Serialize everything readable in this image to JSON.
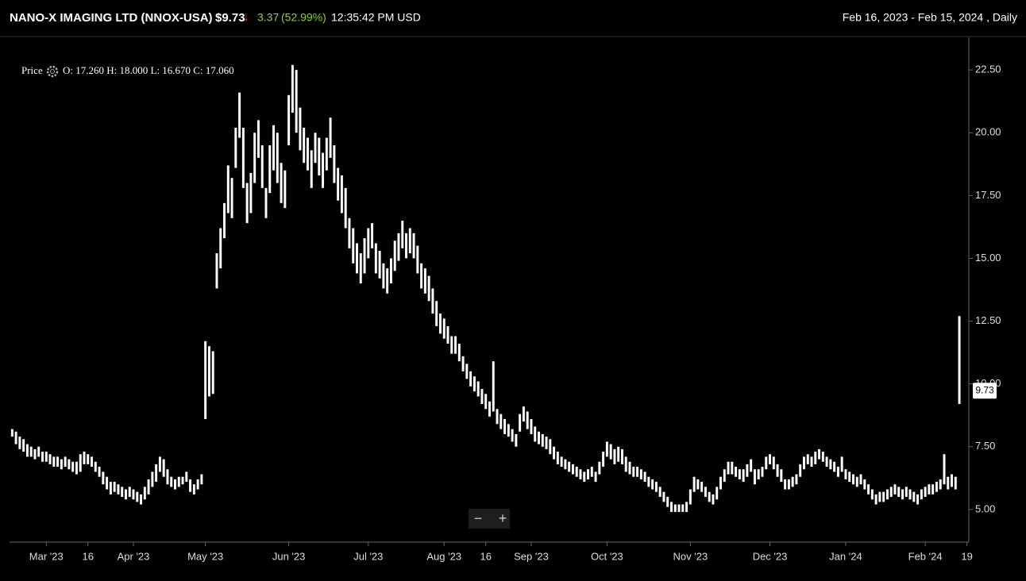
{
  "header": {
    "title": "NANO-X IMAGING LTD (NNOX-USA)",
    "price": "$9.73",
    "change": "3.37",
    "change_pct": "(52.99%)",
    "time": "12:35:42 PM USD",
    "range": "Feb 16, 2023 - Feb 15, 2024 , Daily"
  },
  "legend": {
    "label": "Price",
    "ohlc": "O: 17.260 H: 18.000 L: 16.670 C: 17.060"
  },
  "controls": {
    "zoom_out": "−",
    "zoom_in": "+"
  },
  "chart_data": {
    "type": "ohlc",
    "color": "#ffffff",
    "xlim": [
      -0.7,
      252.5
    ],
    "xticks": [
      {
        "value": 9,
        "label": "Mar '23"
      },
      {
        "value": 20,
        "label": "16"
      },
      {
        "value": 32,
        "label": "Apr '23"
      },
      {
        "value": 51,
        "label": "May '23"
      },
      {
        "value": 73,
        "label": "Jun '23"
      },
      {
        "value": 94,
        "label": "Jul '23"
      },
      {
        "value": 114,
        "label": "Aug '23"
      },
      {
        "value": 125,
        "label": "16"
      },
      {
        "value": 137,
        "label": "Sep '23"
      },
      {
        "value": 157,
        "label": "Oct '23"
      },
      {
        "value": 179,
        "label": "Nov '23"
      },
      {
        "value": 200,
        "label": "Dec '23"
      },
      {
        "value": 220,
        "label": "Jan '24"
      },
      {
        "value": 241,
        "label": "Feb '24"
      },
      {
        "value": 252,
        "label": "19"
      }
    ],
    "ylim": [
      3.7,
      23.8
    ],
    "yticks": [
      {
        "value": 5,
        "label": "5.00"
      },
      {
        "value": 7.5,
        "label": "7.50"
      },
      {
        "value": 10,
        "label": "10.00"
      },
      {
        "value": 12.5,
        "label": "12.50"
      },
      {
        "value": 15,
        "label": "15.00"
      },
      {
        "value": 17.5,
        "label": "17.50"
      },
      {
        "value": 20,
        "label": "20.00"
      },
      {
        "value": 22.5,
        "label": "22.50"
      }
    ],
    "last_price": {
      "value": 9.73,
      "label": "9.73"
    },
    "high": [
      8.2,
      8.1,
      7.9,
      7.8,
      7.6,
      7.5,
      7.4,
      7.5,
      7.3,
      7.3,
      7.2,
      7.1,
      7.1,
      7.0,
      7.1,
      7.0,
      6.9,
      6.9,
      7.2,
      7.3,
      7.2,
      7.1,
      6.9,
      6.7,
      6.5,
      6.3,
      6.1,
      6.1,
      6.0,
      5.9,
      5.8,
      5.9,
      5.8,
      5.7,
      5.6,
      5.9,
      6.2,
      6.5,
      6.8,
      7.1,
      7.0,
      6.6,
      6.3,
      6.2,
      6.3,
      6.3,
      6.5,
      6.2,
      6.0,
      6.2,
      6.4,
      11.7,
      11.5,
      11.3,
      15.2,
      16.2,
      17.2,
      18.7,
      18.2,
      20.2,
      21.6,
      20.2,
      18.0,
      18.4,
      20.0,
      20.5,
      19.5,
      17.8,
      19.5,
      20.3,
      20.0,
      18.8,
      18.5,
      21.5,
      22.7,
      22.5,
      21.0,
      20.2,
      19.8,
      19.3,
      20.0,
      19.8,
      19.2,
      19.8,
      20.6,
      19.5,
      18.6,
      18.3,
      17.8,
      16.6,
      16.2,
      15.6,
      15.2,
      15.8,
      16.2,
      16.4,
      15.6,
      15.3,
      14.8,
      14.6,
      15.0,
      15.7,
      16.0,
      16.5,
      16.0,
      16.2,
      16.0,
      15.5,
      14.8,
      14.6,
      14.3,
      13.8,
      13.3,
      12.8,
      12.6,
      12.3,
      11.9,
      11.9,
      11.6,
      11.1,
      10.8,
      10.5,
      10.3,
      10.1,
      9.8,
      9.6,
      9.3,
      10.9,
      9.0,
      8.8,
      8.6,
      8.4,
      8.2,
      8.0,
      8.8,
      9.1,
      8.9,
      8.6,
      8.3,
      8.1,
      8.0,
      7.9,
      7.8,
      7.5,
      7.3,
      7.1,
      7.0,
      6.9,
      6.8,
      6.7,
      6.6,
      6.5,
      6.6,
      6.7,
      6.5,
      6.9,
      7.3,
      7.7,
      7.6,
      7.4,
      7.5,
      7.4,
      7.1,
      6.9,
      6.7,
      6.7,
      6.6,
      6.5,
      6.3,
      6.2,
      6.1,
      5.9,
      5.7,
      5.5,
      5.3,
      5.2,
      5.2,
      5.2,
      5.3,
      5.8,
      6.3,
      6.2,
      6.1,
      5.9,
      5.7,
      5.6,
      5.9,
      6.3,
      6.6,
      6.9,
      6.9,
      6.7,
      6.6,
      6.6,
      6.8,
      7.0,
      6.6,
      6.6,
      6.7,
      7.1,
      7.2,
      7.1,
      6.8,
      6.6,
      6.2,
      6.2,
      6.3,
      6.4,
      6.8,
      7.1,
      7.2,
      7.1,
      7.3,
      7.4,
      7.3,
      7.1,
      7.0,
      6.9,
      6.7,
      7.1,
      6.6,
      6.5,
      6.4,
      6.3,
      6.4,
      6.2,
      6.0,
      5.8,
      5.6,
      5.7,
      5.7,
      5.8,
      5.9,
      6.0,
      5.9,
      5.8,
      5.9,
      5.8,
      5.7,
      5.6,
      5.8,
      5.9,
      6.0,
      6.0,
      6.1,
      6.2,
      7.2,
      6.3,
      6.4,
      6.3,
      12.7
    ],
    "low": [
      7.9,
      7.6,
      7.4,
      7.3,
      7.1,
      7.1,
      7.0,
      7.1,
      6.9,
      6.9,
      6.8,
      6.7,
      6.7,
      6.6,
      6.7,
      6.6,
      6.5,
      6.4,
      6.5,
      6.8,
      6.8,
      6.7,
      6.5,
      6.3,
      6.0,
      5.8,
      5.6,
      5.7,
      5.6,
      5.5,
      5.4,
      5.5,
      5.4,
      5.3,
      5.2,
      5.4,
      5.6,
      5.9,
      6.1,
      6.5,
      6.3,
      6.0,
      5.9,
      5.8,
      5.9,
      6.0,
      6.1,
      5.7,
      5.6,
      5.8,
      6.0,
      8.6,
      9.5,
      9.6,
      13.8,
      14.6,
      15.8,
      16.8,
      16.6,
      18.6,
      19.8,
      17.8,
      16.4,
      16.8,
      18.0,
      19.0,
      17.8,
      16.6,
      17.6,
      18.5,
      18.0,
      17.2,
      17.0,
      19.5,
      20.8,
      20.0,
      19.3,
      18.8,
      18.5,
      17.8,
      18.8,
      18.3,
      17.8,
      18.5,
      19.0,
      18.0,
      17.3,
      16.8,
      16.2,
      15.4,
      14.8,
      14.4,
      14.0,
      14.4,
      15.0,
      15.4,
      14.4,
      14.2,
      13.8,
      13.6,
      14.0,
      14.5,
      14.9,
      15.4,
      15.0,
      15.2,
      15.0,
      14.4,
      13.8,
      13.6,
      13.3,
      12.8,
      12.3,
      12.0,
      11.8,
      11.6,
      11.2,
      11.2,
      10.9,
      10.5,
      10.2,
      9.9,
      9.7,
      9.5,
      9.2,
      9.0,
      8.7,
      8.9,
      8.4,
      8.2,
      8.0,
      7.9,
      7.7,
      7.5,
      8.1,
      8.5,
      8.2,
      8.0,
      7.7,
      7.6,
      7.5,
      7.4,
      7.2,
      7.0,
      6.8,
      6.7,
      6.6,
      6.5,
      6.4,
      6.3,
      6.2,
      6.1,
      6.2,
      6.3,
      6.1,
      6.4,
      6.7,
      7.1,
      7.0,
      6.8,
      6.9,
      6.8,
      6.5,
      6.4,
      6.3,
      6.3,
      6.2,
      6.1,
      5.9,
      5.8,
      5.7,
      5.5,
      5.3,
      5.1,
      4.9,
      4.9,
      4.9,
      4.9,
      4.9,
      5.2,
      5.7,
      5.8,
      5.7,
      5.5,
      5.3,
      5.2,
      5.4,
      5.8,
      6.1,
      6.4,
      6.4,
      6.3,
      6.2,
      6.1,
      6.3,
      6.5,
      6.0,
      6.2,
      6.3,
      6.6,
      6.8,
      6.6,
      6.3,
      6.1,
      5.8,
      5.8,
      5.9,
      6.0,
      6.3,
      6.6,
      6.8,
      6.7,
      6.8,
      7.0,
      6.9,
      6.7,
      6.6,
      6.5,
      6.3,
      6.5,
      6.2,
      6.1,
      6.0,
      5.9,
      6.0,
      5.8,
      5.6,
      5.4,
      5.2,
      5.3,
      5.3,
      5.4,
      5.5,
      5.6,
      5.5,
      5.4,
      5.5,
      5.4,
      5.3,
      5.2,
      5.4,
      5.5,
      5.6,
      5.6,
      5.7,
      5.8,
      6.0,
      5.8,
      5.9,
      5.8,
      9.2
    ]
  }
}
